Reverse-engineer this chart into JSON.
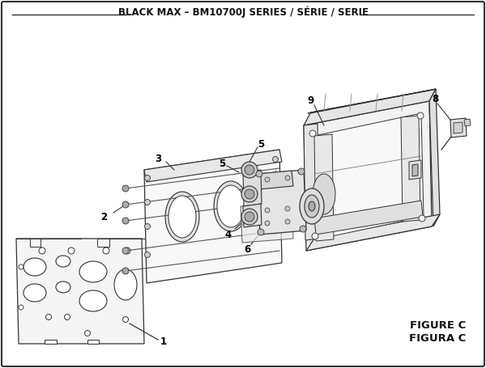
{
  "title": "BLACK MAX – BM10700J SERIES / SÉRIE / SERIE",
  "figure_label": "FIGURE C",
  "figura_label": "FIGURA C",
  "bg_color": "#ffffff",
  "border_color": "#333333",
  "text_color": "#111111",
  "title_fontsize": 8.5,
  "figure_label_fontsize": 9.5
}
